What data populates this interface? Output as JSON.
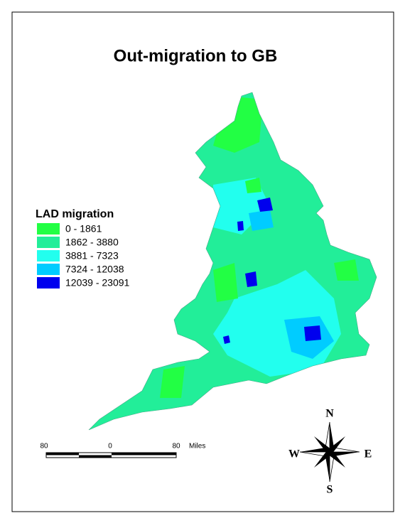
{
  "title": "Out-migration to GB",
  "legend": {
    "title": "LAD migration",
    "items": [
      {
        "label": "0 - 1861",
        "color": "#22ff44"
      },
      {
        "label": "1862 - 3880",
        "color": "#22ee99"
      },
      {
        "label": "3881 - 7323",
        "color": "#22ffee"
      },
      {
        "label": "7324 - 12038",
        "color": "#00ccff"
      },
      {
        "label": "12039 - 23091",
        "color": "#0000ee"
      }
    ]
  },
  "scale_bar": {
    "left": "80",
    "middle": "0",
    "right": "80",
    "unit": "Miles"
  },
  "compass": {
    "north": "N",
    "south": "S",
    "west": "W",
    "east": "E"
  }
}
